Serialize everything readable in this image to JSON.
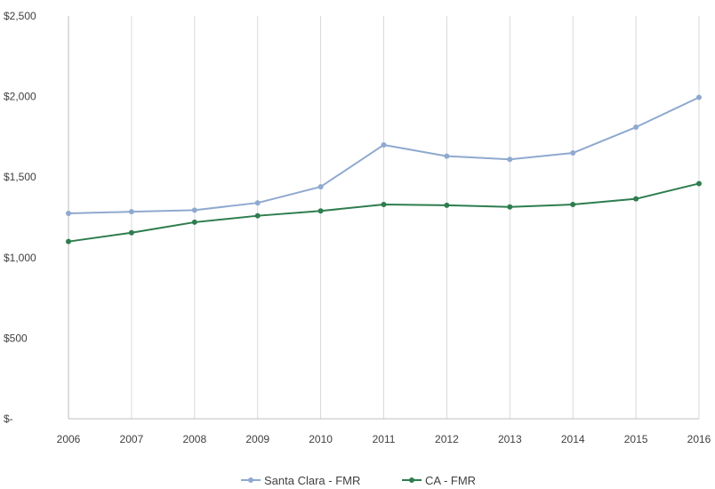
{
  "chart_data": {
    "type": "line",
    "x": [
      2006,
      2007,
      2008,
      2009,
      2010,
      2011,
      2012,
      2013,
      2014,
      2015,
      2016
    ],
    "x_tick_labels": [
      "2006",
      "2007",
      "2008",
      "2009",
      "2010",
      "2011",
      "2012",
      "2013",
      "2014",
      "2015",
      "2016"
    ],
    "y_tick_labels": [
      "$-",
      "$500",
      "$1,000",
      "$1,500",
      "$2,000",
      "$2,500"
    ],
    "ylim": [
      0,
      2500
    ],
    "grid": "vertical",
    "legend_position": "bottom",
    "series": [
      {
        "name": "Santa Clara - FMR",
        "color": "#8fa9d0",
        "values": [
          1275,
          1285,
          1295,
          1340,
          1440,
          1700,
          1630,
          1610,
          1650,
          1810,
          1995
        ]
      },
      {
        "name": "CA - FMR",
        "color": "#2e7d4f",
        "values": [
          1100,
          1155,
          1220,
          1260,
          1290,
          1330,
          1325,
          1315,
          1330,
          1365,
          1460
        ]
      }
    ]
  }
}
